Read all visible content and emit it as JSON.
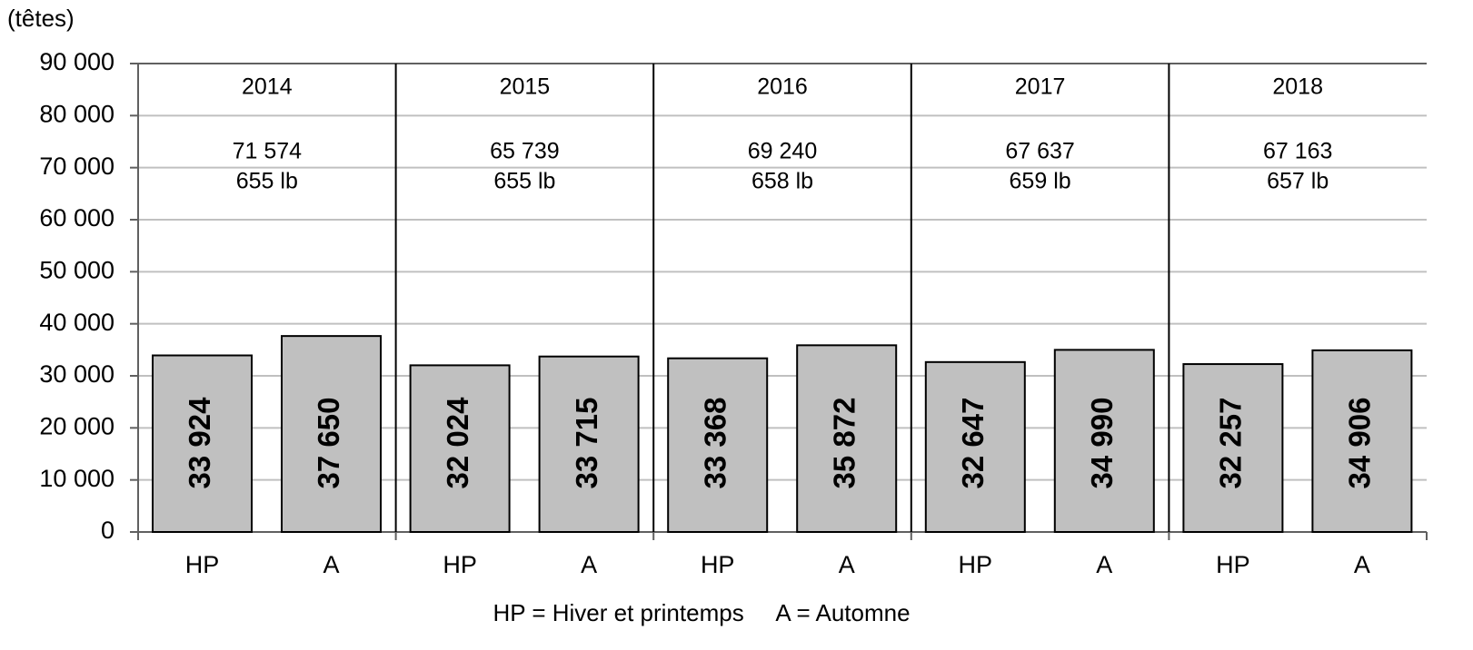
{
  "chart_data": {
    "type": "bar",
    "y_unit": "(têtes)",
    "note": "HP = Hiver et printemps     A = Automne",
    "categories": [
      "HP",
      "A",
      "HP",
      "A",
      "HP",
      "A",
      "HP",
      "A",
      "HP",
      "A"
    ],
    "groups": [
      {
        "year": "2014",
        "total": "71 574",
        "weight": "655 lb"
      },
      {
        "year": "2015",
        "total": "65 739",
        "weight": "655 lb"
      },
      {
        "year": "2016",
        "total": "69 240",
        "weight": "658 lb"
      },
      {
        "year": "2017",
        "total": "67 637",
        "weight": "659 lb"
      },
      {
        "year": "2018",
        "total": "67 163",
        "weight": "657 lb"
      }
    ],
    "values": [
      33924,
      37650,
      32024,
      33715,
      33368,
      35872,
      32647,
      34990,
      32257,
      34906
    ],
    "value_labels": [
      "33 924",
      "37 650",
      "32 024",
      "33 715",
      "33 368",
      "35 872",
      "32 647",
      "34 990",
      "32 257",
      "34 906"
    ],
    "color": "#c0c0c0",
    "ylim": [
      0,
      90000
    ],
    "yticks": [
      0,
      {
        "value": 10000,
        "label": "10 000"
      },
      {
        "value": 20000,
        "label": "20 000"
      },
      {
        "value": 30000,
        "label": "30 000"
      },
      {
        "value": 40000,
        "label": "40 000"
      },
      {
        "value": 50000,
        "label": "50 000"
      },
      {
        "value": 60000,
        "label": "60 000"
      },
      {
        "value": 70000,
        "label": "70 000"
      },
      {
        "value": 80000,
        "label": "80 000"
      },
      {
        "value": 90000,
        "label": "90 000"
      }
    ],
    "grid": true
  }
}
